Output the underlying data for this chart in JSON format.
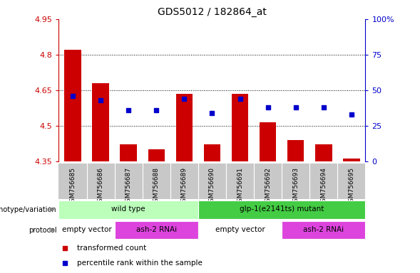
{
  "title": "GDS5012 / 182864_at",
  "samples": [
    "GSM756685",
    "GSM756686",
    "GSM756687",
    "GSM756688",
    "GSM756689",
    "GSM756690",
    "GSM756691",
    "GSM756692",
    "GSM756693",
    "GSM756694",
    "GSM756695"
  ],
  "red_values": [
    4.82,
    4.68,
    4.42,
    4.4,
    4.635,
    4.42,
    4.635,
    4.515,
    4.44,
    4.42,
    4.36
  ],
  "blue_values": [
    46,
    43,
    36,
    36,
    44,
    34,
    44,
    38,
    38,
    38,
    33
  ],
  "ylim_left": [
    4.35,
    4.95
  ],
  "ylim_right": [
    0,
    100
  ],
  "yticks_left": [
    4.35,
    4.5,
    4.65,
    4.8,
    4.95
  ],
  "yticks_right": [
    0,
    25,
    50,
    75,
    100
  ],
  "gridlines": [
    4.5,
    4.65,
    4.8
  ],
  "bar_color": "#cc0000",
  "dot_color": "#0000cc",
  "left_axis_color": "#cc0000",
  "right_axis_color": "#0000cc",
  "sample_bg_color": "#c8c8c8",
  "genotype_groups": [
    {
      "label": "wild type",
      "start": 0,
      "end": 5,
      "color": "#bbffbb"
    },
    {
      "label": "glp-1(e2141ts) mutant",
      "start": 5,
      "end": 11,
      "color": "#44cc44"
    }
  ],
  "protocol_groups": [
    {
      "label": "empty vector",
      "start": 0,
      "end": 2,
      "color": "#ffffff"
    },
    {
      "label": "ash-2 RNAi",
      "start": 2,
      "end": 5,
      "color": "#dd44dd"
    },
    {
      "label": "empty vector",
      "start": 5,
      "end": 8,
      "color": "#ffffff"
    },
    {
      "label": "ash-2 RNAi",
      "start": 8,
      "end": 11,
      "color": "#dd44dd"
    }
  ],
  "legend_items": [
    {
      "label": "transformed count",
      "color": "#cc0000"
    },
    {
      "label": "percentile rank within the sample",
      "color": "#0000cc"
    }
  ]
}
